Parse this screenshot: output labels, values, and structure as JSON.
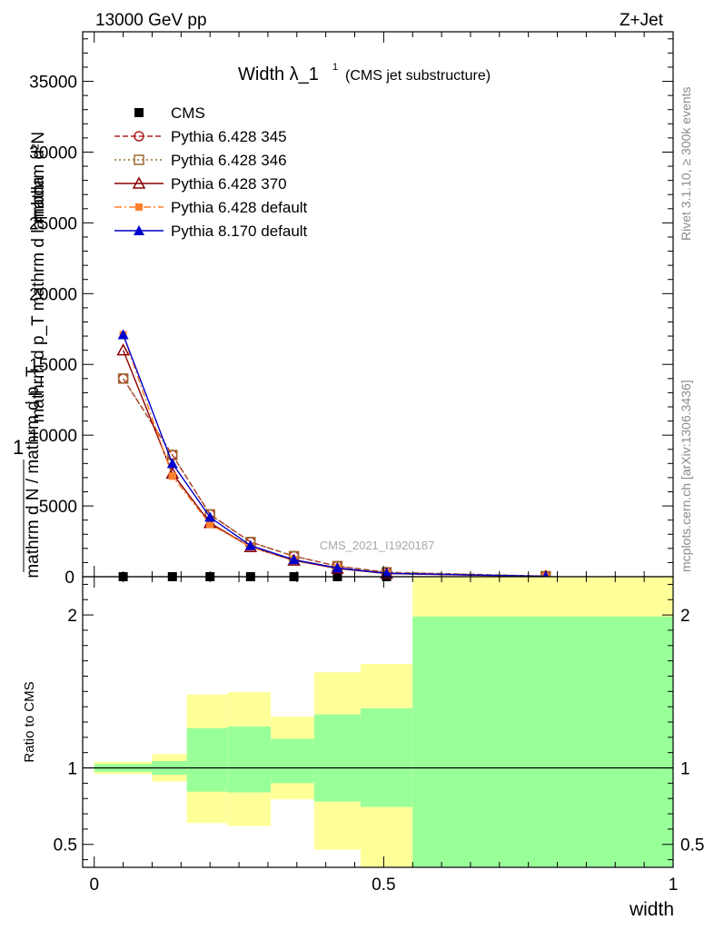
{
  "header": {
    "left": "13000 GeV pp",
    "right": "Z+Jet"
  },
  "title": {
    "main": "Width λ_1",
    "sup": "1",
    "sub": "(CMS jet substructure)"
  },
  "side_text": {
    "rivet": "Rivet 3.1.10, ≥ 300k events",
    "mcplots": "mcplots.cern.ch [arXiv:1306.3436]"
  },
  "watermark": "CMS_2021_I1920187",
  "main_ylabel": {
    "line1": "mathrm d²N",
    "line2": "mathrm d p_T mathrm d lambda",
    "prefix": "1",
    "line3": "mathrm d N / mathrm d p_T"
  },
  "ratio_ylabel": "Ratio to CMS",
  "xlabel": "width",
  "chart_data": [
    {
      "type": "line",
      "panel": "main",
      "xlim": [
        -0.02,
        1.0
      ],
      "ylim": [
        0,
        38500
      ],
      "yticks": [
        {
          "v": 5000,
          "label": "5000"
        },
        {
          "v": 10000,
          "label": "10000"
        },
        {
          "v": 15000,
          "label": "15000"
        },
        {
          "v": 20000,
          "label": "20000"
        },
        {
          "v": 25000,
          "label": "25000"
        },
        {
          "v": 30000,
          "label": "30000"
        },
        {
          "v": 35000,
          "label": "35000"
        }
      ],
      "x": [
        0.05,
        0.135,
        0.2,
        0.27,
        0.345,
        0.42,
        0.505,
        0.78
      ],
      "legend_position": "top-left",
      "series": [
        {
          "name": "CMS",
          "color": "#000000",
          "marker": "filled-square",
          "line": "none",
          "values": [
            0,
            0,
            0,
            0,
            0,
            0,
            0,
            0
          ]
        },
        {
          "name": "Pythia 6.428 345",
          "color": "#b22222",
          "marker": "open-circle",
          "line": "dashed",
          "values": [
            14000,
            8600,
            4400,
            2450,
            1450,
            750,
            310,
            40
          ]
        },
        {
          "name": "Pythia 6.428 346",
          "color": "#9c6b30",
          "marker": "open-square",
          "line": "dotted",
          "values": [
            14000,
            8600,
            4400,
            2450,
            1450,
            750,
            310,
            40
          ]
        },
        {
          "name": "Pythia 6.428 370",
          "color": "#8b0000",
          "marker": "open-triangle",
          "line": "solid",
          "values": [
            16000,
            7300,
            3800,
            2100,
            1150,
            580,
            220,
            20
          ]
        },
        {
          "name": "Pythia 6.428 default",
          "color": "#ff7f2a",
          "marker": "filled-square-small",
          "line": "dashdot",
          "values": [
            17100,
            7100,
            3700,
            2100,
            1200,
            630,
            250,
            30
          ]
        },
        {
          "name": "Pythia 8.170 default",
          "color": "#0000cc",
          "marker": "filled-triangle",
          "line": "solid",
          "values": [
            17100,
            8000,
            4200,
            2200,
            1200,
            620,
            240,
            25
          ]
        }
      ]
    },
    {
      "type": "area",
      "panel": "ratio",
      "xlim": [
        -0.02,
        1.0
      ],
      "ylim": [
        0.35,
        2.25
      ],
      "yticks": [
        {
          "v": 0.5,
          "label": "0.5"
        },
        {
          "v": 1,
          "label": "1"
        },
        {
          "v": 2,
          "label": "2"
        }
      ],
      "xticks": [
        {
          "v": 0,
          "label": "0"
        },
        {
          "v": 0.5,
          "label": "0.5"
        },
        {
          "v": 1,
          "label": "1"
        }
      ],
      "reference_line": 1,
      "band_colors": {
        "outer": "#ffff99",
        "inner": "#99ff99"
      },
      "bins": [
        {
          "lo": 0.0,
          "hi": 0.1,
          "outer": [
            0.96,
            1.04
          ],
          "inner": [
            0.975,
            1.025
          ]
        },
        {
          "lo": 0.1,
          "hi": 0.16,
          "outer": [
            0.91,
            1.09
          ],
          "inner": [
            0.955,
            1.045
          ]
        },
        {
          "lo": 0.16,
          "hi": 0.23,
          "outer": [
            0.64,
            1.48
          ],
          "inner": [
            0.845,
            1.26
          ]
        },
        {
          "lo": 0.23,
          "hi": 0.305,
          "outer": [
            0.62,
            1.495
          ],
          "inner": [
            0.84,
            1.27
          ]
        },
        {
          "lo": 0.305,
          "hi": 0.38,
          "outer": [
            0.795,
            1.335
          ],
          "inner": [
            0.9,
            1.19
          ]
        },
        {
          "lo": 0.38,
          "hi": 0.46,
          "outer": [
            0.465,
            1.625
          ],
          "inner": [
            0.78,
            1.35
          ]
        },
        {
          "lo": 0.46,
          "hi": 0.55,
          "outer": [
            0.35,
            1.68
          ],
          "inner": [
            0.745,
            1.39
          ]
        },
        {
          "lo": 0.55,
          "hi": 1.0,
          "outer": [
            0.35,
            2.25
          ],
          "inner": [
            0.35,
            1.99
          ]
        }
      ]
    }
  ]
}
